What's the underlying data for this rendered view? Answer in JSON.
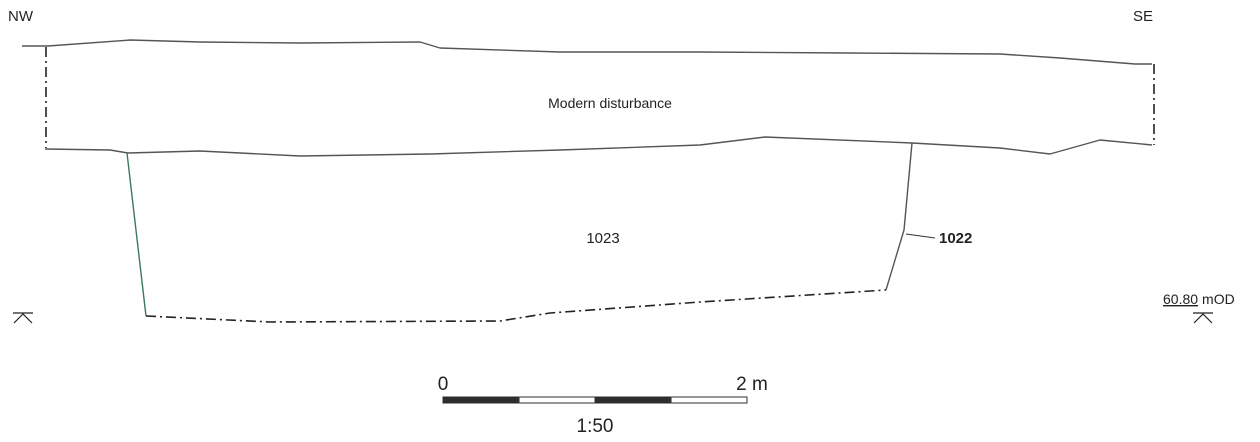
{
  "orientation": {
    "left": "NW",
    "right": "SE"
  },
  "layers": {
    "upper": "Modern disturbance",
    "fill": "1023",
    "cut": "1022"
  },
  "datum": {
    "value": "60.80",
    "unit": "mOD"
  },
  "scale_bar": {
    "start": "0",
    "end": "2 m",
    "ratio": "1:50",
    "segments": 4
  },
  "colors": {
    "line": "#555555",
    "cut_left": "#3c7a5a",
    "bar_dark": "#2e2e2e"
  }
}
